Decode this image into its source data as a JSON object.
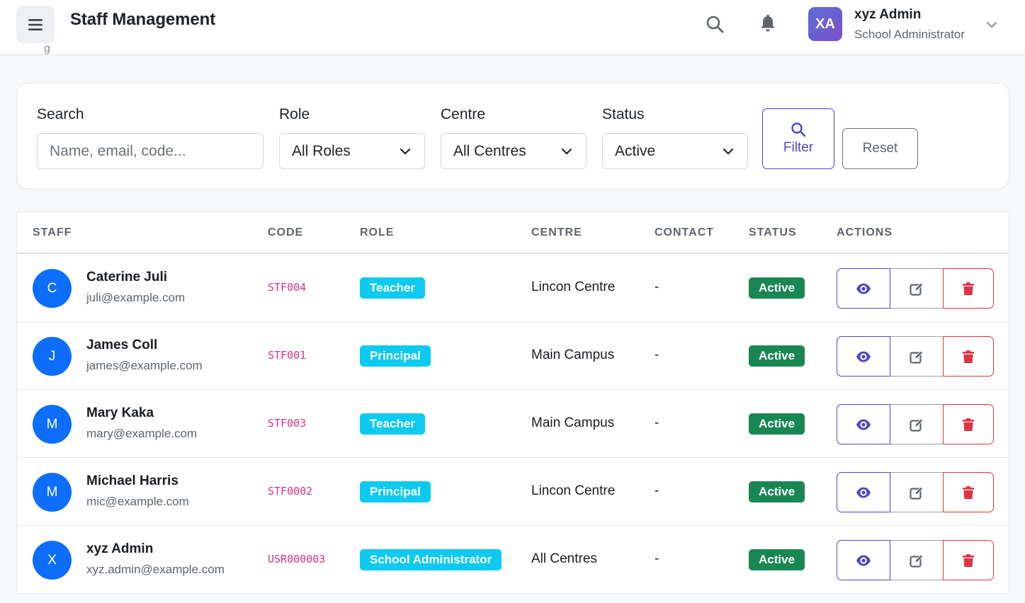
{
  "header": {
    "title": "Staff Management",
    "peek_text": "g",
    "menu_icon": "hamburger-menu-icon",
    "search_icon": "search-icon",
    "notification_icon": "bell-icon",
    "user": {
      "initials": "XA",
      "name": "xyz Admin",
      "role": "School Administrator"
    }
  },
  "filters": {
    "search": {
      "label": "Search",
      "placeholder": "Name, email, code..."
    },
    "role": {
      "label": "Role",
      "value": "All Roles"
    },
    "centre": {
      "label": "Centre",
      "value": "All Centres"
    },
    "status": {
      "label": "Status",
      "value": "Active"
    },
    "filter_button": "Filter",
    "reset_button": "Reset"
  },
  "table": {
    "columns": [
      "STAFF",
      "CODE",
      "ROLE",
      "CENTRE",
      "CONTACT",
      "STATUS",
      "ACTIONS"
    ],
    "rows": [
      {
        "initial": "C",
        "name": "Caterine Juli",
        "email": "juli@example.com",
        "code": "STF004",
        "role": "Teacher",
        "centre": "Lincon Centre",
        "contact": "-",
        "status": "Active"
      },
      {
        "initial": "J",
        "name": "James Coll",
        "email": "james@example.com",
        "code": "STF001",
        "role": "Principal",
        "centre": "Main Campus",
        "contact": "-",
        "status": "Active"
      },
      {
        "initial": "M",
        "name": "Mary Kaka",
        "email": "mary@example.com",
        "code": "STF003",
        "role": "Teacher",
        "centre": "Main Campus",
        "contact": "-",
        "status": "Active"
      },
      {
        "initial": "M",
        "name": "Michael Harris",
        "email": "mic@example.com",
        "code": "STF0002",
        "role": "Principal",
        "centre": "Lincon Centre",
        "contact": "-",
        "status": "Active"
      },
      {
        "initial": "X",
        "name": "xyz Admin",
        "email": "xyz.admin@example.com",
        "code": "USR000003",
        "role": "School Administrator",
        "centre": "All Centres",
        "contact": "-",
        "status": "Active"
      }
    ]
  },
  "colors": {
    "primary": "#0d6efd",
    "indigo": "#4f46c9",
    "info_badge": "#0dcaf0",
    "success_badge": "#198754",
    "danger": "#dc3545",
    "code_text": "#d63384"
  }
}
